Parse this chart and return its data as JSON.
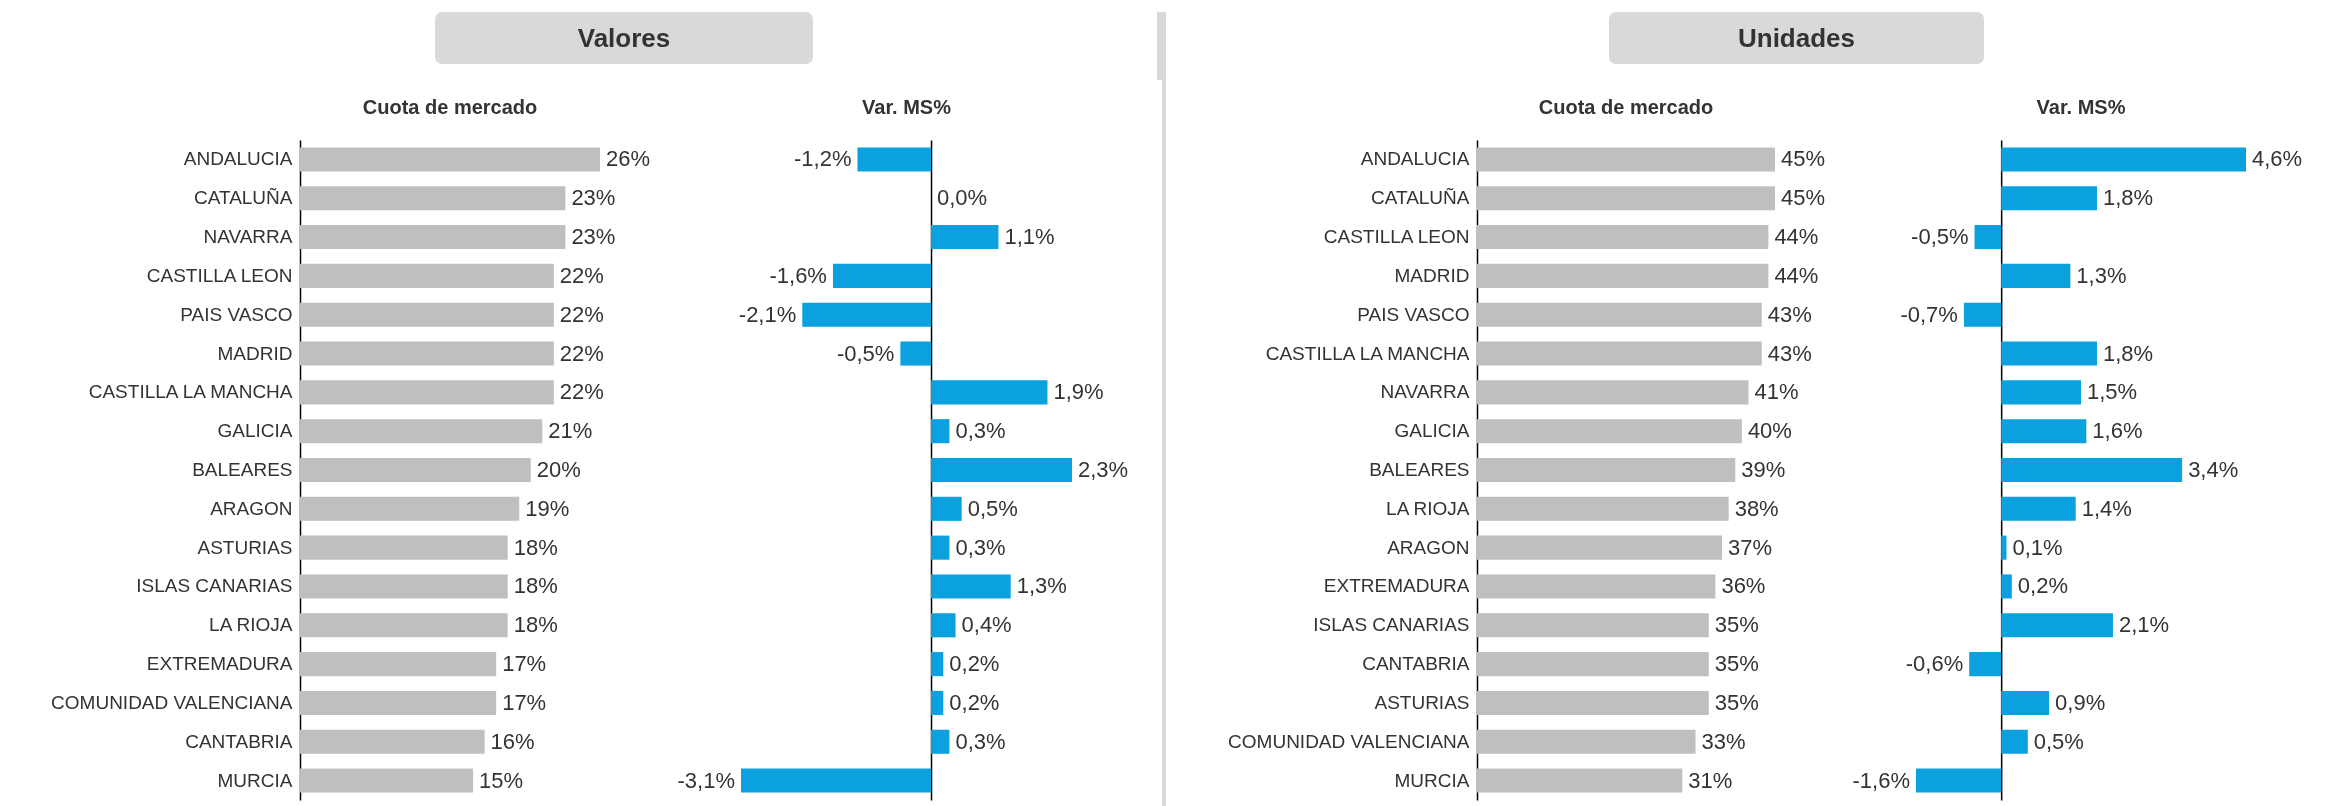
{
  "chart_data": [
    {
      "type": "bar",
      "orientation": "horizontal",
      "title": "Cuota de mercado",
      "annotations": [
        "Valores"
      ],
      "tick_labels": "y",
      "color": "#bfbfbf",
      "categories": [
        "ANDALUCIA",
        "CATALUÑA",
        "NAVARRA",
        "CASTILLA LEON",
        "PAIS VASCO",
        "MADRID",
        "CASTILLA LA MANCHA",
        "GALICIA",
        "BALEARES",
        "ARAGON",
        "ASTURIAS",
        "ISLAS CANARIAS",
        "LA RIOJA",
        "EXTREMADURA",
        "COMUNIDAD VALENCIANA",
        "CANTABRIA",
        "MURCIA"
      ],
      "values": [
        26,
        23,
        23,
        22,
        22,
        22,
        22,
        21,
        20,
        19,
        18,
        18,
        18,
        17,
        17,
        16,
        15
      ],
      "value_labels": [
        "26%",
        "23%",
        "23%",
        "22%",
        "22%",
        "22%",
        "22%",
        "21%",
        "20%",
        "19%",
        "18%",
        "18%",
        "18%",
        "17%",
        "17%",
        "16%",
        "15%"
      ]
    },
    {
      "type": "bar",
      "orientation": "horizontal",
      "title": "Var. MS%",
      "color": "#0aa1de",
      "categories": [
        null,
        null,
        null,
        null,
        null,
        null,
        null,
        null,
        null,
        null,
        null,
        null,
        null,
        null,
        null,
        null,
        null
      ],
      "values": [
        -1.2,
        0.0,
        1.1,
        -1.6,
        -2.1,
        -0.5,
        1.9,
        0.3,
        2.3,
        0.5,
        0.3,
        1.3,
        0.4,
        0.2,
        0.2,
        0.3,
        -3.1
      ],
      "value_labels": [
        "-1,2%",
        "0,0%",
        "1,1%",
        "-1,6%",
        "-2,1%",
        "-0,5%",
        "1,9%",
        "0,3%",
        "2,3%",
        "0,5%",
        "0,3%",
        "1,3%",
        "0,4%",
        "0,2%",
        "0,2%",
        "0,3%",
        "-3,1%"
      ]
    },
    {
      "type": "bar",
      "orientation": "horizontal",
      "title": "Cuota de mercado",
      "annotations": [
        "Unidades"
      ],
      "tick_labels": "y",
      "color": "#bfbfbf",
      "categories": [
        "ANDALUCIA",
        "CATALUÑA",
        "CASTILLA LEON",
        "MADRID",
        "PAIS VASCO",
        "CASTILLA LA MANCHA",
        "NAVARRA",
        "GALICIA",
        "BALEARES",
        "LA RIOJA",
        "ARAGON",
        "EXTREMADURA",
        "ISLAS CANARIAS",
        "CANTABRIA",
        "ASTURIAS",
        "COMUNIDAD VALENCIANA",
        "MURCIA"
      ],
      "values": [
        45,
        45,
        44,
        44,
        43,
        43,
        41,
        40,
        39,
        38,
        37,
        36,
        35,
        35,
        35,
        33,
        31
      ],
      "value_labels": [
        "45%",
        "45%",
        "44%",
        "44%",
        "43%",
        "43%",
        "41%",
        "40%",
        "39%",
        "38%",
        "37%",
        "36%",
        "35%",
        "35%",
        "35%",
        "33%",
        "31%"
      ]
    },
    {
      "type": "bar",
      "orientation": "horizontal",
      "title": "Var. MS%",
      "color": "#0aa1de",
      "categories": [
        null,
        null,
        null,
        null,
        null,
        null,
        null,
        null,
        null,
        null,
        null,
        null,
        null,
        null,
        null,
        null,
        null
      ],
      "values": [
        4.6,
        1.8,
        -0.5,
        1.3,
        -0.7,
        1.8,
        1.5,
        1.6,
        3.4,
        1.4,
        0.1,
        0.2,
        2.1,
        -0.6,
        0.9,
        0.5,
        -1.6
      ],
      "value_labels": [
        "4,6%",
        "1,8%",
        "-0,5%",
        "1,3%",
        "-0,7%",
        "1,8%",
        "1,5%",
        "1,6%",
        "3,4%",
        "1,4%",
        "0,1%",
        "0,2%",
        "2,1%",
        "-0,6%",
        "0,9%",
        "0,5%",
        "-1,6%"
      ]
    }
  ]
}
